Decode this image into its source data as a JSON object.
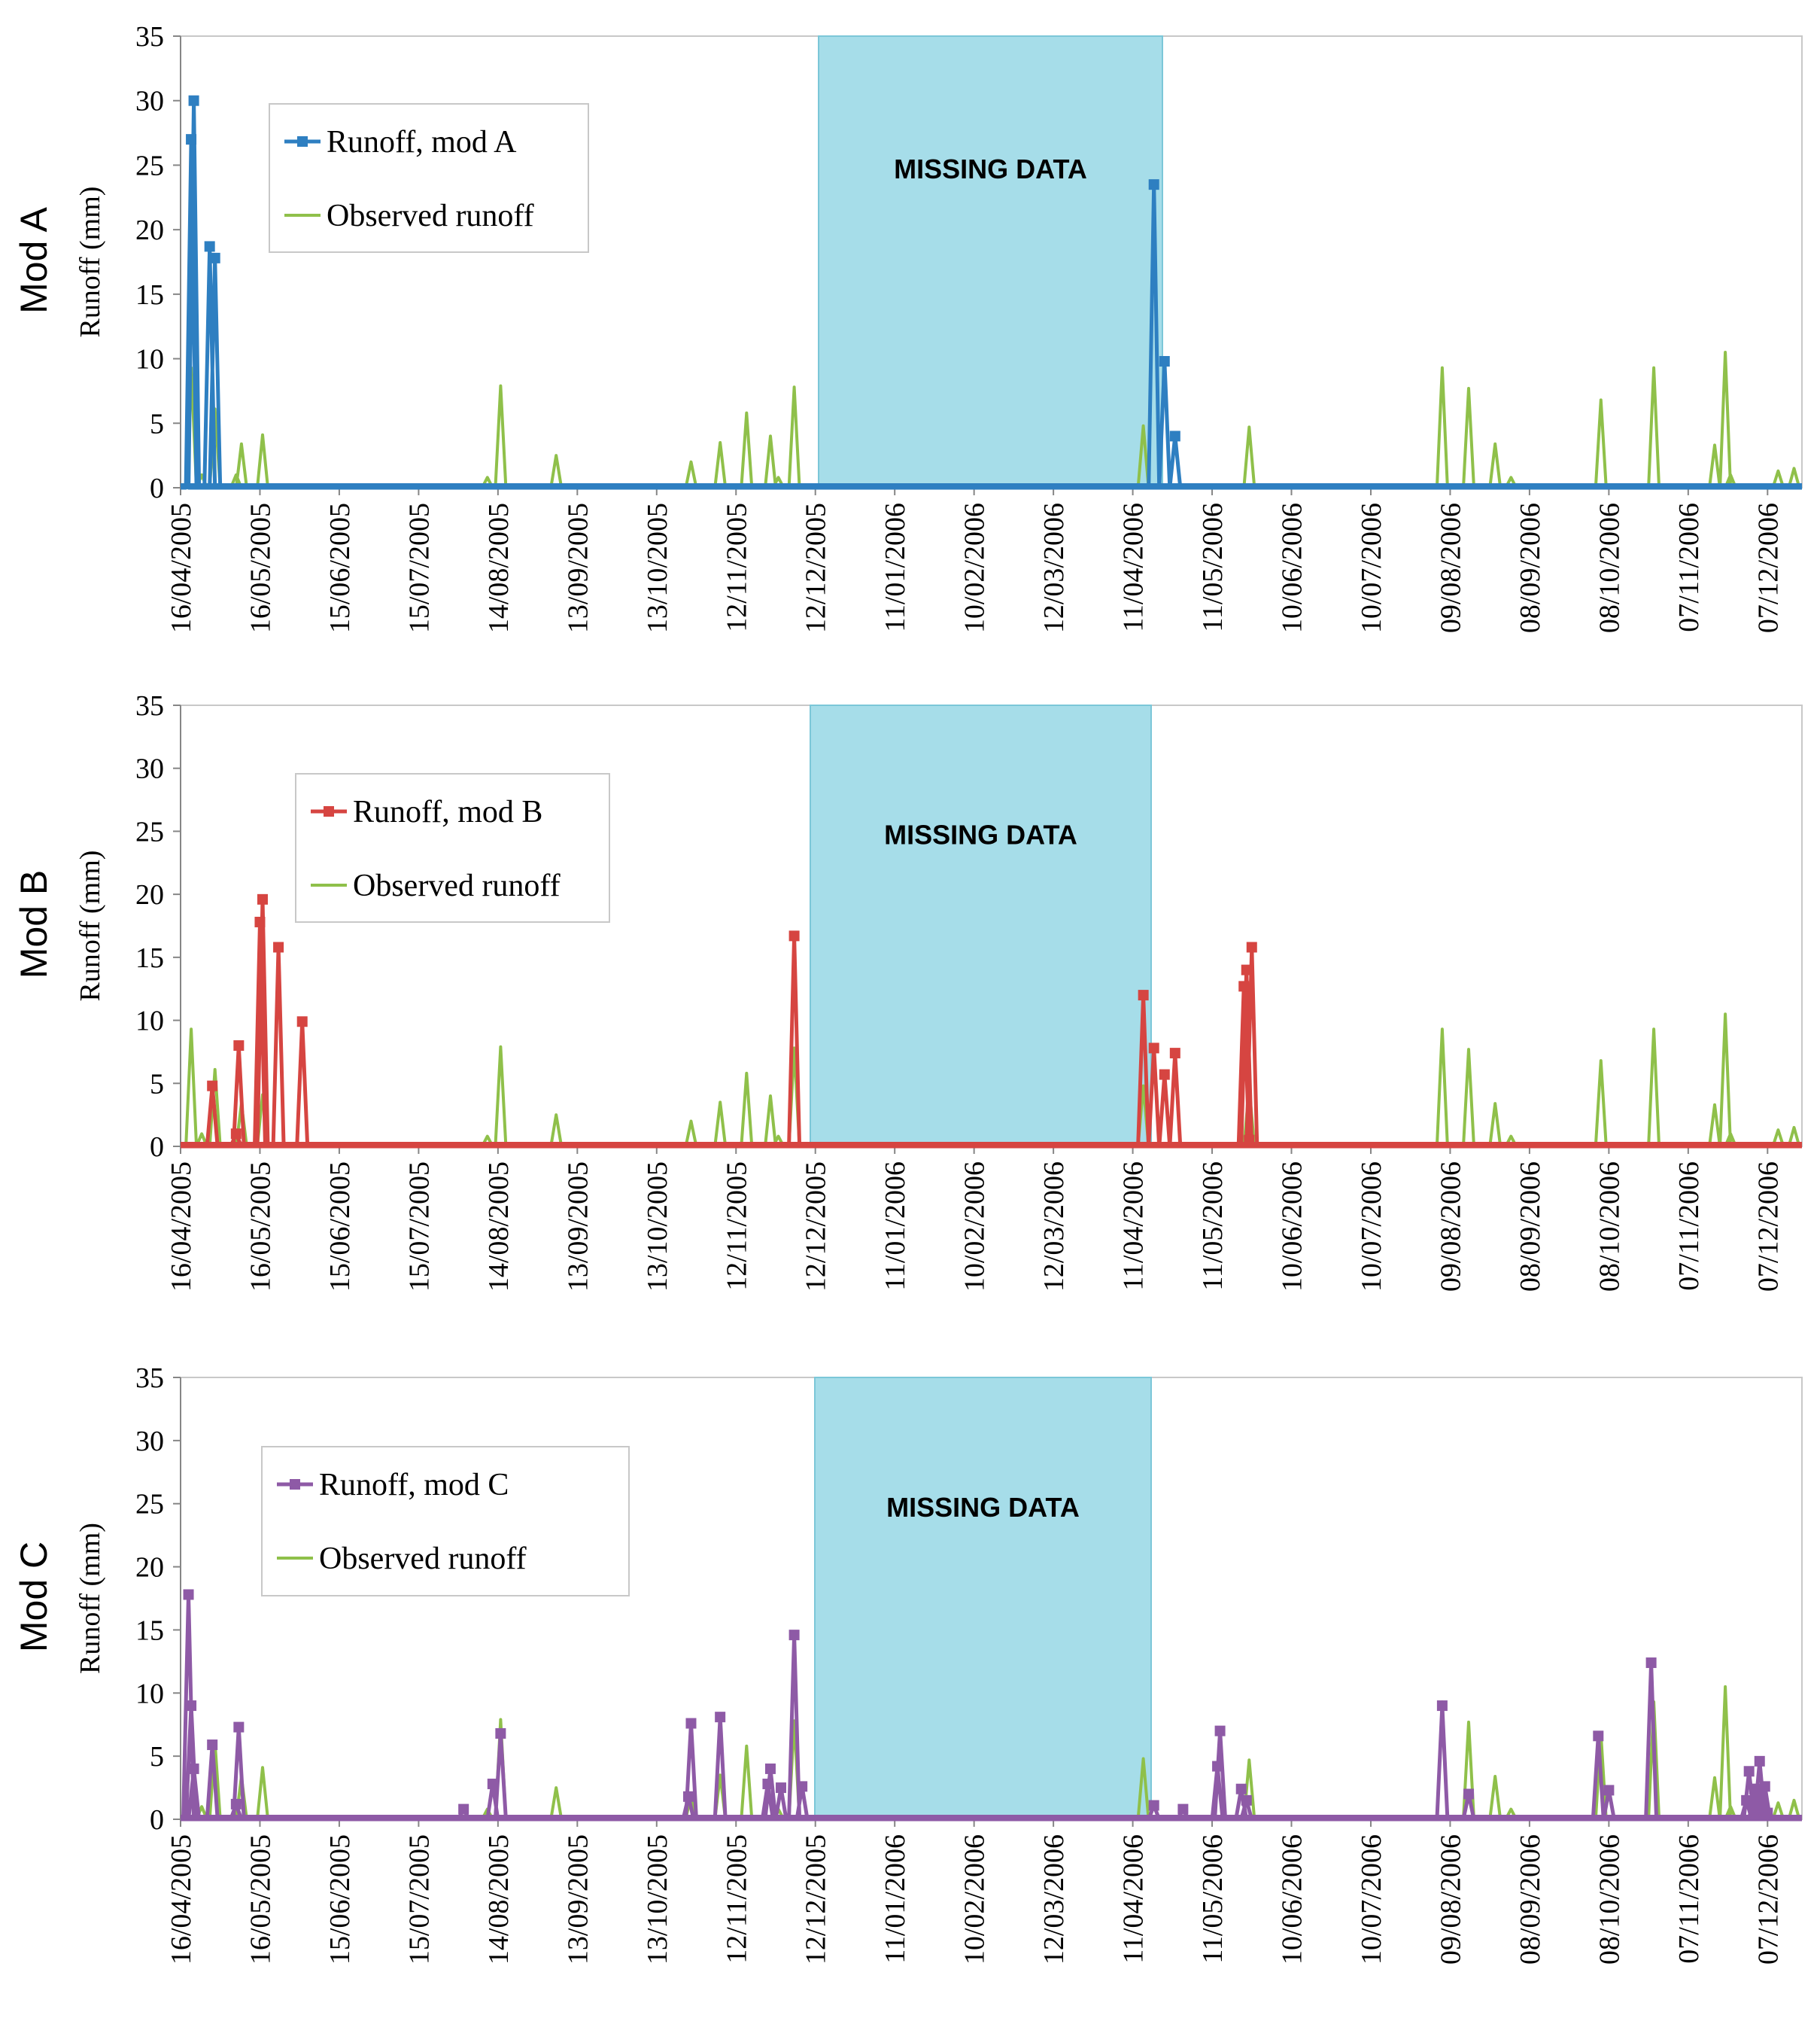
{
  "chart_data": [
    {
      "type": "line",
      "panel_label": "Mod A",
      "ylabel": "Runoff (mm)",
      "ylim": [
        0,
        35
      ],
      "yticks": [
        0,
        5,
        10,
        15,
        20,
        25,
        30,
        35
      ],
      "xlim": [
        "2005-04-16",
        "2006-12-20"
      ],
      "xticks": [
        "16/04/2005",
        "16/05/2005",
        "15/06/2005",
        "15/07/2005",
        "14/08/2005",
        "13/09/2005",
        "13/10/2005",
        "12/11/2005",
        "12/12/2005",
        "11/01/2006",
        "10/02/2006",
        "12/03/2006",
        "11/04/2006",
        "11/05/2006",
        "10/06/2006",
        "10/07/2006",
        "09/08/2006",
        "08/09/2006",
        "08/10/2006",
        "07/11/2006",
        "07/12/2006"
      ],
      "missing_data": {
        "label": "MISSING DATA",
        "start": "2005-12-08",
        "end": "2006-04-16"
      },
      "legend": {
        "position": "top-left",
        "entries": [
          "Runoff, mod A",
          "Observed runoff"
        ]
      },
      "series": [
        {
          "name": "Runoff, mod A",
          "color": "#2e7fc1",
          "markers": true,
          "points": [
            [
              "2005-04-20",
              27
            ],
            [
              "2005-04-21",
              30
            ],
            [
              "2005-04-22",
              0
            ],
            [
              "2005-04-26",
              0
            ],
            [
              "2005-04-27",
              18.7
            ],
            [
              "2005-04-28",
              0
            ],
            [
              "2005-04-29",
              17.8
            ],
            [
              "2005-04-30",
              0
            ],
            [
              "2006-04-18",
              0
            ],
            [
              "2006-04-19",
              23.5
            ],
            [
              "2006-04-20",
              0
            ],
            [
              "2006-04-22",
              0
            ],
            [
              "2006-04-23",
              9.8
            ],
            [
              "2006-04-24",
              0
            ],
            [
              "2006-04-26",
              0
            ],
            [
              "2006-04-27",
              4
            ],
            [
              "2006-04-28",
              0
            ]
          ]
        },
        {
          "name": "Observed runoff",
          "color": "#8fc04a",
          "markers": false,
          "points": []
        }
      ]
    },
    {
      "type": "line",
      "panel_label": "Mod B",
      "ylabel": "Runoff (mm)",
      "ylim": [
        0,
        35
      ],
      "yticks": [
        0,
        5,
        10,
        15,
        20,
        25,
        30,
        35
      ],
      "xlim": [
        "2005-04-16",
        "2006-12-20"
      ],
      "xticks": [
        "16/04/2005",
        "16/05/2005",
        "15/06/2005",
        "15/07/2005",
        "14/08/2005",
        "13/09/2005",
        "13/10/2005",
        "12/11/2005",
        "12/12/2005",
        "11/01/2006",
        "10/02/2006",
        "12/03/2006",
        "11/04/2006",
        "11/05/2006",
        "10/06/2006",
        "10/07/2006",
        "09/08/2006",
        "08/09/2006",
        "08/10/2006",
        "07/11/2006",
        "07/12/2006"
      ],
      "missing_data": {
        "label": "MISSING DATA",
        "start": "2005-12-05",
        "end": "2006-04-12"
      },
      "legend": {
        "position": "top-left",
        "entries": [
          "Runoff, mod B",
          "Observed runoff"
        ]
      },
      "series": [
        {
          "name": "Runoff, mod B",
          "color": "#d64541",
          "markers": true,
          "points": [
            [
              "2005-04-27",
              0
            ],
            [
              "2005-04-28",
              4.8
            ],
            [
              "2005-04-29",
              0
            ],
            [
              "2005-05-06",
              0
            ],
            [
              "2005-05-07",
              1
            ],
            [
              "2005-05-08",
              8
            ],
            [
              "2005-05-09",
              0
            ],
            [
              "2005-05-15",
              0
            ],
            [
              "2005-05-16",
              17.8
            ],
            [
              "2005-05-17",
              19.6
            ],
            [
              "2005-05-18",
              0
            ],
            [
              "2005-05-22",
              0
            ],
            [
              "2005-05-23",
              15.8
            ],
            [
              "2005-05-24",
              0
            ],
            [
              "2005-05-31",
              0
            ],
            [
              "2005-06-01",
              9.9
            ],
            [
              "2005-06-02",
              0
            ],
            [
              "2005-12-03",
              0
            ],
            [
              "2005-12-04",
              16.7
            ],
            [
              "2005-12-05",
              0
            ],
            [
              "2006-04-14",
              0
            ],
            [
              "2006-04-15",
              12
            ],
            [
              "2006-04-16",
              0
            ],
            [
              "2006-04-18",
              0
            ],
            [
              "2006-04-19",
              7.8
            ],
            [
              "2006-04-20",
              0
            ],
            [
              "2006-04-22",
              0
            ],
            [
              "2006-04-23",
              5.7
            ],
            [
              "2006-04-24",
              0
            ],
            [
              "2006-04-26",
              0
            ],
            [
              "2006-04-27",
              7.4
            ],
            [
              "2006-04-28",
              0
            ],
            [
              "2006-05-22",
              0
            ],
            [
              "2006-05-23",
              12.7
            ],
            [
              "2006-05-24",
              14
            ],
            [
              "2006-05-25",
              0.5
            ],
            [
              "2006-05-26",
              15.8
            ],
            [
              "2006-05-27",
              0
            ]
          ]
        },
        {
          "name": "Observed runoff",
          "color": "#8fc04a",
          "markers": false,
          "points": []
        }
      ]
    },
    {
      "type": "line",
      "panel_label": "Mod C",
      "ylabel": "Runoff (mm)",
      "ylim": [
        0,
        35
      ],
      "yticks": [
        0,
        5,
        10,
        15,
        20,
        25,
        30,
        35
      ],
      "xlim": [
        "2005-04-16",
        "2006-12-20"
      ],
      "xticks": [
        "16/04/2005",
        "16/05/2005",
        "15/06/2005",
        "15/07/2005",
        "14/08/2005",
        "13/09/2005",
        "13/10/2005",
        "12/11/2005",
        "12/12/2005",
        "11/01/2006",
        "10/02/2006",
        "12/03/2006",
        "11/04/2006",
        "11/05/2006",
        "10/06/2006",
        "10/07/2006",
        "09/08/2006",
        "08/09/2006",
        "08/10/2006",
        "07/11/2006",
        "07/12/2006"
      ],
      "missing_data": {
        "label": "MISSING DATA",
        "start": "2005-12-09",
        "end": "2006-04-12"
      },
      "legend": {
        "position": "top-left",
        "entries": [
          "Runoff, mod C",
          "Observed runoff"
        ]
      },
      "series": [
        {
          "name": "Runoff, mod C",
          "color": "#8e5aa6",
          "markers": true,
          "points": [
            [
              "2005-04-18",
              0
            ],
            [
              "2005-04-19",
              17.8
            ],
            [
              "2005-04-20",
              9
            ],
            [
              "2005-04-21",
              4
            ],
            [
              "2005-04-22",
              0
            ],
            [
              "2005-04-27",
              0
            ],
            [
              "2005-04-28",
              5.9
            ],
            [
              "2005-04-29",
              0
            ],
            [
              "2005-05-06",
              0
            ],
            [
              "2005-05-07",
              1.2
            ],
            [
              "2005-05-08",
              7.3
            ],
            [
              "2005-05-09",
              0
            ],
            [
              "2005-07-31",
              0
            ],
            [
              "2005-08-01",
              0.8
            ],
            [
              "2005-08-02",
              0
            ],
            [
              "2005-08-11",
              0
            ],
            [
              "2005-08-12",
              2.8
            ],
            [
              "2005-08-13",
              0
            ],
            [
              "2005-08-15",
              6.8
            ],
            [
              "2005-08-16",
              0
            ],
            [
              "2005-10-24",
              0
            ],
            [
              "2005-10-25",
              1.8
            ],
            [
              "2005-10-26",
              7.6
            ],
            [
              "2005-10-27",
              0
            ],
            [
              "2005-11-05",
              0
            ],
            [
              "2005-11-06",
              8.1
            ],
            [
              "2005-11-07",
              0
            ],
            [
              "2005-11-23",
              0
            ],
            [
              "2005-11-24",
              2.8
            ],
            [
              "2005-11-25",
              4
            ],
            [
              "2005-11-26",
              0
            ],
            [
              "2005-11-28",
              0
            ],
            [
              "2005-11-29",
              2.5
            ],
            [
              "2005-11-30",
              0
            ],
            [
              "2005-12-03",
              0
            ],
            [
              "2005-12-04",
              14.6
            ],
            [
              "2005-12-05",
              0
            ],
            [
              "2005-12-07",
              2.6
            ],
            [
              "2005-12-08",
              0
            ],
            [
              "2006-04-18",
              0
            ],
            [
              "2006-04-19",
              1.1
            ],
            [
              "2006-04-20",
              0
            ],
            [
              "2006-04-29",
              0
            ],
            [
              "2006-04-30",
              0.8
            ],
            [
              "2006-05-01",
              0
            ],
            [
              "2006-05-12",
              0
            ],
            [
              "2006-05-13",
              4.2
            ],
            [
              "2006-05-14",
              7
            ],
            [
              "2006-05-15",
              0
            ],
            [
              "2006-05-21",
              0
            ],
            [
              "2006-05-22",
              2.4
            ],
            [
              "2006-05-23",
              0
            ],
            [
              "2006-05-24",
              1.5
            ],
            [
              "2006-05-25",
              0
            ],
            [
              "2006-08-05",
              0
            ],
            [
              "2006-08-06",
              9
            ],
            [
              "2006-08-07",
              0
            ],
            [
              "2006-08-15",
              0
            ],
            [
              "2006-08-16",
              2
            ],
            [
              "2006-08-17",
              0
            ],
            [
              "2006-10-03",
              0
            ],
            [
              "2006-10-04",
              6.6
            ],
            [
              "2006-10-05",
              0
            ],
            [
              "2006-10-07",
              0
            ],
            [
              "2006-10-08",
              2.3
            ],
            [
              "2006-10-09",
              0
            ],
            [
              "2006-10-23",
              0
            ],
            [
              "2006-10-24",
              12.4
            ],
            [
              "2006-10-25",
              0
            ],
            [
              "2006-11-28",
              0
            ],
            [
              "2006-11-29",
              1.5
            ],
            [
              "2006-11-30",
              3.8
            ],
            [
              "2006-12-01",
              0
            ],
            [
              "2006-12-02",
              2.4
            ],
            [
              "2006-12-03",
              2.4
            ],
            [
              "2006-12-04",
              4.6
            ],
            [
              "2006-12-05",
              2.2
            ],
            [
              "2006-12-06",
              2.6
            ],
            [
              "2006-12-07",
              0.5
            ],
            [
              "2006-12-08",
              0
            ]
          ]
        },
        {
          "name": "Observed runoff",
          "color": "#8fc04a",
          "markers": false,
          "points": []
        }
      ]
    }
  ],
  "observed_peaks_2005": [
    [
      "2005-04-20",
      9.3
    ],
    [
      "2005-04-24",
      1
    ],
    [
      "2005-04-29",
      6.1
    ],
    [
      "2005-05-07",
      1
    ],
    [
      "2005-05-09",
      3.4
    ],
    [
      "2005-05-17",
      4.1
    ],
    [
      "2005-08-10",
      0.8
    ],
    [
      "2005-08-15",
      7.9
    ],
    [
      "2005-09-05",
      2.5
    ],
    [
      "2005-10-26",
      2
    ],
    [
      "2005-11-06",
      3.5
    ],
    [
      "2005-11-16",
      5.8
    ],
    [
      "2005-11-25",
      4
    ],
    [
      "2005-11-28",
      0.8
    ],
    [
      "2005-12-04",
      7.8
    ]
  ],
  "observed_peaks_2006": [
    [
      "2006-04-15",
      4.8
    ],
    [
      "2006-05-25",
      4.7
    ],
    [
      "2006-08-06",
      9.3
    ],
    [
      "2006-08-16",
      7.7
    ],
    [
      "2006-08-26",
      3.4
    ],
    [
      "2006-09-01",
      0.8
    ],
    [
      "2006-10-05",
      6.8
    ],
    [
      "2006-10-25",
      9.3
    ],
    [
      "2006-11-17",
      3.3
    ],
    [
      "2006-11-21",
      10.5
    ],
    [
      "2006-11-23",
      1
    ],
    [
      "2006-12-11",
      1.3
    ],
    [
      "2006-12-17",
      1.5
    ]
  ]
}
